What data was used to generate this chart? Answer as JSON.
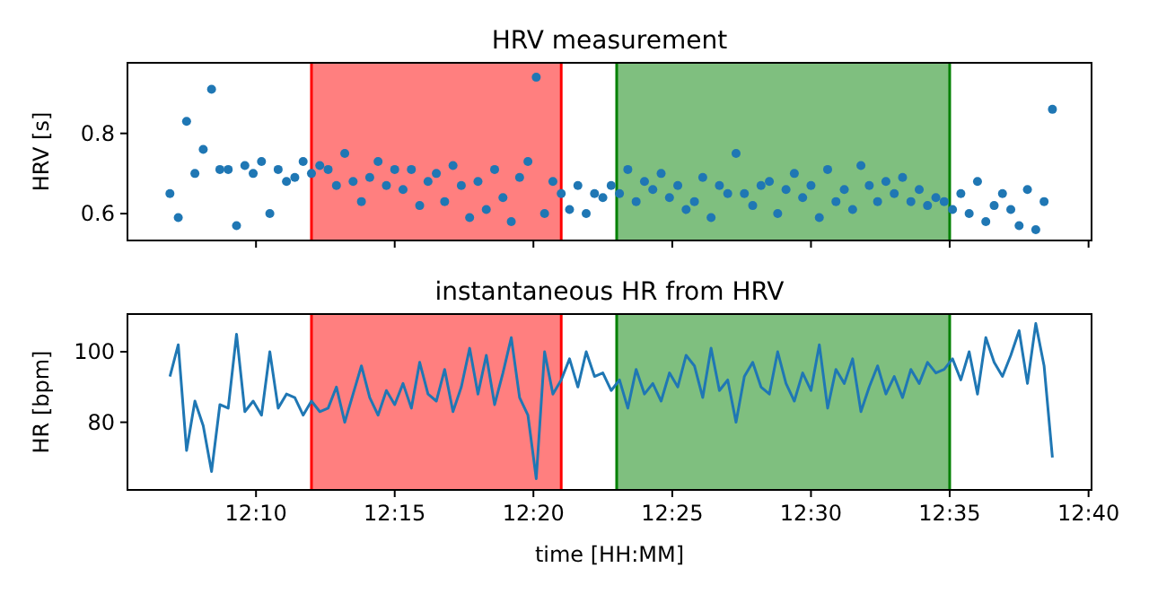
{
  "chart_data": [
    {
      "type": "scatter",
      "title": "HRV measurement",
      "ylabel": "HRV [s]",
      "tick_labels": "y",
      "marker": "circle",
      "xlim": [
        12.0895,
        12.6685
      ],
      "ylim": [
        0.533,
        0.976
      ],
      "yticks": [
        0.6,
        0.8
      ],
      "xticks": [
        {
          "value": 12.1667,
          "label": null
        },
        {
          "value": 12.25,
          "label": null
        },
        {
          "value": 12.3333,
          "label": null
        },
        {
          "value": 12.4167,
          "label": null
        },
        {
          "value": 12.5,
          "label": null
        },
        {
          "value": 12.5833,
          "label": null
        },
        {
          "value": 12.6667,
          "label": null
        }
      ],
      "bands": [
        {
          "axis": "x",
          "from": 12.2,
          "to": 12.35,
          "color": "#ff0000"
        },
        {
          "axis": "x",
          "from": 12.3833,
          "to": 12.5833,
          "color": "#008000"
        }
      ],
      "ref_lines": [
        {
          "axis": "x",
          "value": 12.2,
          "color": "#ff0000"
        },
        {
          "axis": "x",
          "value": 12.35,
          "color": "#ff0000"
        },
        {
          "axis": "x",
          "value": 12.3833,
          "color": "#008000"
        },
        {
          "axis": "x",
          "value": 12.5833,
          "color": "#008000"
        }
      ],
      "x": [
        12.115,
        12.12,
        12.125,
        12.13,
        12.135,
        12.14,
        12.145,
        12.15,
        12.155,
        12.16,
        12.165,
        12.17,
        12.175,
        12.18,
        12.185,
        12.19,
        12.195,
        12.2,
        12.205,
        12.21,
        12.215,
        12.22,
        12.225,
        12.23,
        12.235,
        12.24,
        12.245,
        12.25,
        12.255,
        12.26,
        12.265,
        12.27,
        12.275,
        12.28,
        12.285,
        12.29,
        12.295,
        12.3,
        12.305,
        12.31,
        12.315,
        12.32,
        12.325,
        12.33,
        12.335,
        12.34,
        12.345,
        12.35,
        12.355,
        12.36,
        12.365,
        12.37,
        12.375,
        12.38,
        12.385,
        12.39,
        12.395,
        12.4,
        12.405,
        12.41,
        12.415,
        12.42,
        12.425,
        12.43,
        12.435,
        12.44,
        12.445,
        12.45,
        12.455,
        12.46,
        12.465,
        12.47,
        12.475,
        12.48,
        12.485,
        12.49,
        12.495,
        12.5,
        12.505,
        12.51,
        12.515,
        12.52,
        12.525,
        12.53,
        12.535,
        12.54,
        12.545,
        12.55,
        12.555,
        12.56,
        12.565,
        12.57,
        12.575,
        12.58,
        12.585,
        12.59,
        12.595,
        12.6,
        12.605,
        12.61,
        12.615,
        12.62,
        12.625,
        12.63,
        12.635,
        12.64,
        12.645
      ],
      "series": [
        {
          "color": "#1f77b4",
          "values": [
            0.65,
            0.59,
            0.83,
            0.7,
            0.76,
            0.91,
            0.71,
            0.71,
            0.57,
            0.72,
            0.7,
            0.73,
            0.6,
            0.71,
            0.68,
            0.69,
            0.73,
            0.7,
            0.72,
            0.71,
            0.67,
            0.75,
            0.68,
            0.63,
            0.69,
            0.73,
            0.67,
            0.71,
            0.66,
            0.71,
            0.62,
            0.68,
            0.7,
            0.63,
            0.72,
            0.67,
            0.59,
            0.68,
            0.61,
            0.71,
            0.64,
            0.58,
            0.69,
            0.73,
            0.94,
            0.6,
            0.68,
            0.65,
            0.61,
            0.67,
            0.6,
            0.65,
            0.64,
            0.67,
            0.65,
            0.71,
            0.63,
            0.68,
            0.66,
            0.7,
            0.64,
            0.67,
            0.61,
            0.63,
            0.69,
            0.59,
            0.67,
            0.65,
            0.75,
            0.65,
            0.62,
            0.67,
            0.68,
            0.6,
            0.66,
            0.7,
            0.64,
            0.67,
            0.59,
            0.71,
            0.63,
            0.66,
            0.61,
            0.72,
            0.67,
            0.63,
            0.68,
            0.65,
            0.69,
            0.63,
            0.66,
            0.62,
            0.64,
            0.63,
            0.61,
            0.65,
            0.6,
            0.68,
            0.58,
            0.62,
            0.65,
            0.61,
            0.57,
            0.66,
            0.56,
            0.63,
            0.86
          ]
        }
      ]
    },
    {
      "type": "line",
      "title": "instantaneous HR from HRV",
      "xlabel": "time [HH:MM]",
      "ylabel": "HR [bpm]",
      "marker": "none",
      "xlim": [
        12.0895,
        12.6685
      ],
      "ylim": [
        60.8,
        110.7
      ],
      "yticks": [
        80,
        100
      ],
      "xticks": [
        {
          "value": 12.1667,
          "label": "12:10"
        },
        {
          "value": 12.25,
          "label": "12:15"
        },
        {
          "value": 12.3333,
          "label": "12:20"
        },
        {
          "value": 12.4167,
          "label": "12:25"
        },
        {
          "value": 12.5,
          "label": "12:30"
        },
        {
          "value": 12.5833,
          "label": "12:35"
        },
        {
          "value": 12.6667,
          "label": "12:40"
        }
      ],
      "bands": [
        {
          "axis": "x",
          "from": 12.2,
          "to": 12.35,
          "color": "#ff0000"
        },
        {
          "axis": "x",
          "from": 12.3833,
          "to": 12.5833,
          "color": "#008000"
        }
      ],
      "ref_lines": [
        {
          "axis": "x",
          "value": 12.2,
          "color": "#ff0000"
        },
        {
          "axis": "x",
          "value": 12.35,
          "color": "#ff0000"
        },
        {
          "axis": "x",
          "value": 12.3833,
          "color": "#008000"
        },
        {
          "axis": "x",
          "value": 12.5833,
          "color": "#008000"
        }
      ],
      "x": [
        12.115,
        12.12,
        12.125,
        12.13,
        12.135,
        12.14,
        12.145,
        12.15,
        12.155,
        12.16,
        12.165,
        12.17,
        12.175,
        12.18,
        12.185,
        12.19,
        12.195,
        12.2,
        12.205,
        12.21,
        12.215,
        12.22,
        12.225,
        12.23,
        12.235,
        12.24,
        12.245,
        12.25,
        12.255,
        12.26,
        12.265,
        12.27,
        12.275,
        12.28,
        12.285,
        12.29,
        12.295,
        12.3,
        12.305,
        12.31,
        12.315,
        12.32,
        12.325,
        12.33,
        12.335,
        12.34,
        12.345,
        12.35,
        12.355,
        12.36,
        12.365,
        12.37,
        12.375,
        12.38,
        12.385,
        12.39,
        12.395,
        12.4,
        12.405,
        12.41,
        12.415,
        12.42,
        12.425,
        12.43,
        12.435,
        12.44,
        12.445,
        12.45,
        12.455,
        12.46,
        12.465,
        12.47,
        12.475,
        12.48,
        12.485,
        12.49,
        12.495,
        12.5,
        12.505,
        12.51,
        12.515,
        12.52,
        12.525,
        12.53,
        12.535,
        12.54,
        12.545,
        12.55,
        12.555,
        12.56,
        12.565,
        12.57,
        12.575,
        12.58,
        12.585,
        12.59,
        12.595,
        12.6,
        12.605,
        12.61,
        12.615,
        12.62,
        12.625,
        12.63,
        12.635,
        12.64,
        12.645
      ],
      "series": [
        {
          "color": "#1f77b4",
          "values": [
            93,
            102,
            72,
            86,
            79,
            66,
            85,
            84,
            105,
            83,
            86,
            82,
            100,
            84,
            88,
            87,
            82,
            86,
            83,
            84,
            90,
            80,
            88,
            96,
            87,
            82,
            89,
            85,
            91,
            84,
            97,
            88,
            86,
            95,
            83,
            90,
            101,
            88,
            99,
            85,
            94,
            104,
            87,
            82,
            64,
            100,
            88,
            92,
            98,
            90,
            100,
            93,
            94,
            89,
            92,
            84,
            95,
            88,
            91,
            86,
            94,
            90,
            99,
            96,
            87,
            101,
            89,
            92,
            80,
            93,
            97,
            90,
            88,
            100,
            91,
            86,
            94,
            89,
            102,
            84,
            95,
            91,
            98,
            83,
            90,
            96,
            88,
            93,
            87,
            95,
            91,
            97,
            94,
            95,
            98,
            92,
            100,
            88,
            104,
            97,
            93,
            99,
            106,
            91,
            108,
            96,
            70
          ]
        }
      ]
    }
  ]
}
